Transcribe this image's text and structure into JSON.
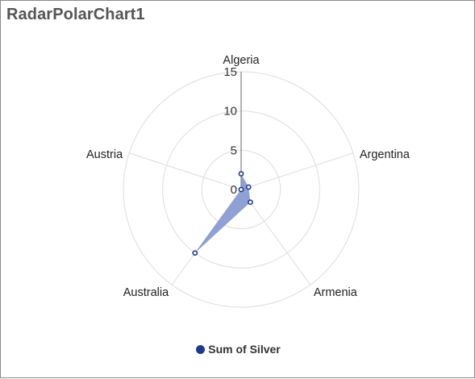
{
  "widget": {
    "title": "RadarPolarChart1"
  },
  "chart_data": {
    "type": "radar",
    "categories": [
      "Algeria",
      "Argentina",
      "Armenia",
      "Australia",
      "Austria"
    ],
    "series": [
      {
        "name": "Sum of Silver",
        "values": [
          2,
          1,
          2,
          10,
          0
        ],
        "fill_color": "#7b8fcc",
        "stroke_color": "#1f3a8a"
      }
    ],
    "radial_axis": {
      "ticks": [
        0,
        5,
        10,
        15
      ],
      "range": [
        0,
        15
      ]
    },
    "grid": true,
    "legend": "bottom"
  }
}
